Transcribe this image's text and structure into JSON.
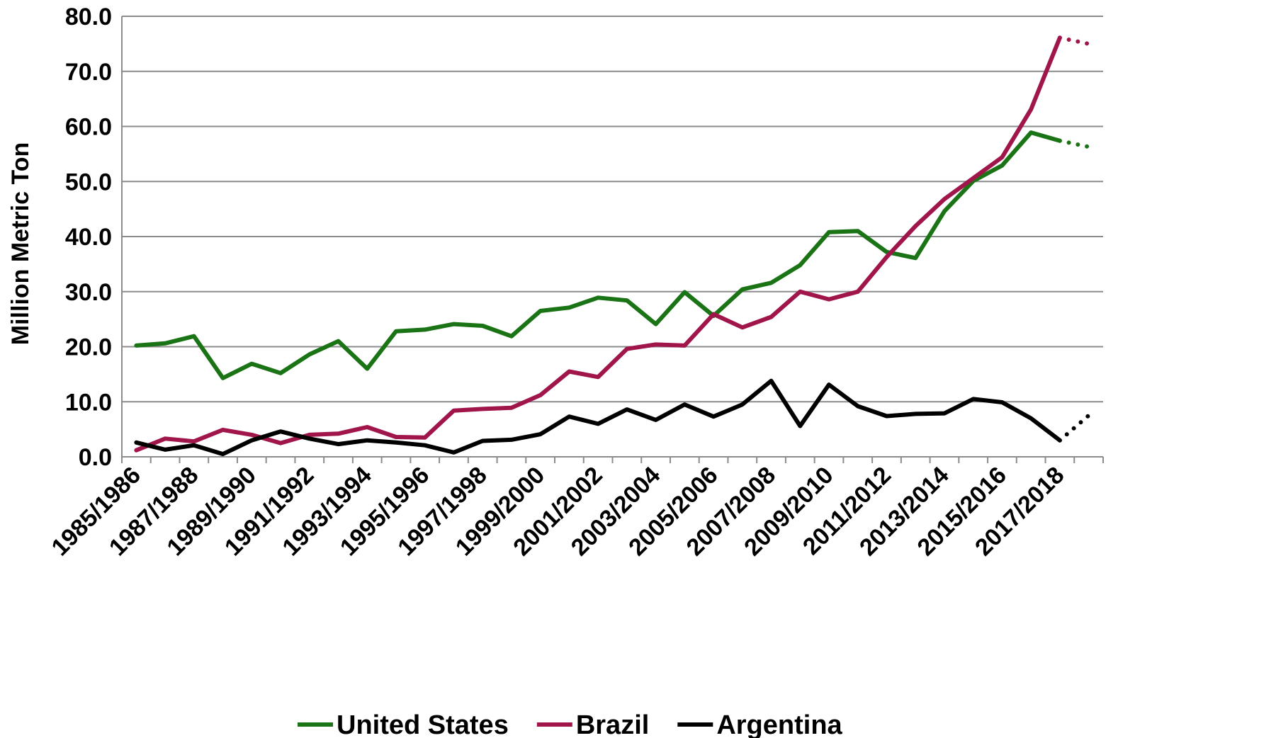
{
  "chart_data": {
    "type": "line",
    "title": "",
    "xlabel": "",
    "ylabel": "Million Metric Ton",
    "ylim": [
      0,
      80
    ],
    "yticks": [
      "0.0",
      "10.0",
      "20.0",
      "30.0",
      "40.0",
      "50.0",
      "60.0",
      "70.0",
      "80.0"
    ],
    "grid": true,
    "legend": "bottom",
    "categories": [
      "1985/1986",
      "1986/1987",
      "1987/1988",
      "1988/1989",
      "1989/1990",
      "1990/1991",
      "1991/1992",
      "1992/1993",
      "1993/1994",
      "1994/1995",
      "1995/1996",
      "1996/1997",
      "1997/1998",
      "1998/1999",
      "1999/2000",
      "2000/2001",
      "2001/2002",
      "2002/2003",
      "2003/2004",
      "2004/2005",
      "2005/2006",
      "2006/2007",
      "2007/2008",
      "2008/2009",
      "2009/2010",
      "2010/2011",
      "2011/2012",
      "2012/2013",
      "2013/2014",
      "2014/2015",
      "2015/2016",
      "2016/2017",
      "2017/2018",
      "2018/2019"
    ],
    "x_tick_labels": [
      "1985/1986",
      "1987/1988",
      "1989/1990",
      "1991/1992",
      "1993/1994",
      "1995/1996",
      "1997/1998",
      "1999/2000",
      "2001/2002",
      "2003/2004",
      "2005/2006",
      "2007/2008",
      "2009/2010",
      "2011/2012",
      "2013/2014",
      "2015/2016",
      "2017/2018"
    ],
    "series": [
      {
        "name": "United States",
        "color": "#1a7314",
        "values": [
          20.2,
          20.6,
          21.9,
          14.3,
          16.9,
          15.2,
          18.6,
          21.0,
          16.0,
          22.8,
          23.1,
          24.1,
          23.8,
          21.9,
          26.5,
          27.1,
          28.9,
          28.4,
          24.1,
          29.9,
          25.6,
          30.4,
          31.6,
          34.8,
          40.8,
          41.0,
          37.2,
          36.1,
          44.6,
          50.1,
          52.9,
          58.9,
          57.4,
          56.3
        ],
        "projection_from_index": 32
      },
      {
        "name": "Brazil",
        "color": "#a0154a",
        "values": [
          1.2,
          3.3,
          2.8,
          4.9,
          4.0,
          2.5,
          4.0,
          4.2,
          5.4,
          3.6,
          3.5,
          8.4,
          8.7,
          8.9,
          11.2,
          15.5,
          14.5,
          19.6,
          20.4,
          20.2,
          25.9,
          23.5,
          25.4,
          30.0,
          28.6,
          30.0,
          36.3,
          41.9,
          46.8,
          50.6,
          54.4,
          63.1,
          76.1,
          75.0
        ],
        "projection_from_index": 32
      },
      {
        "name": "Argentina",
        "color": "#000000",
        "values": [
          2.6,
          1.3,
          2.1,
          0.5,
          3.0,
          4.6,
          3.3,
          2.3,
          3.0,
          2.6,
          2.1,
          0.8,
          2.9,
          3.1,
          4.1,
          7.3,
          6.0,
          8.6,
          6.7,
          9.5,
          7.3,
          9.5,
          13.8,
          5.6,
          13.1,
          9.2,
          7.4,
          7.8,
          7.9,
          10.5,
          9.9,
          7.0,
          3.0,
          7.5
        ],
        "projection_from_index": 32
      }
    ]
  }
}
